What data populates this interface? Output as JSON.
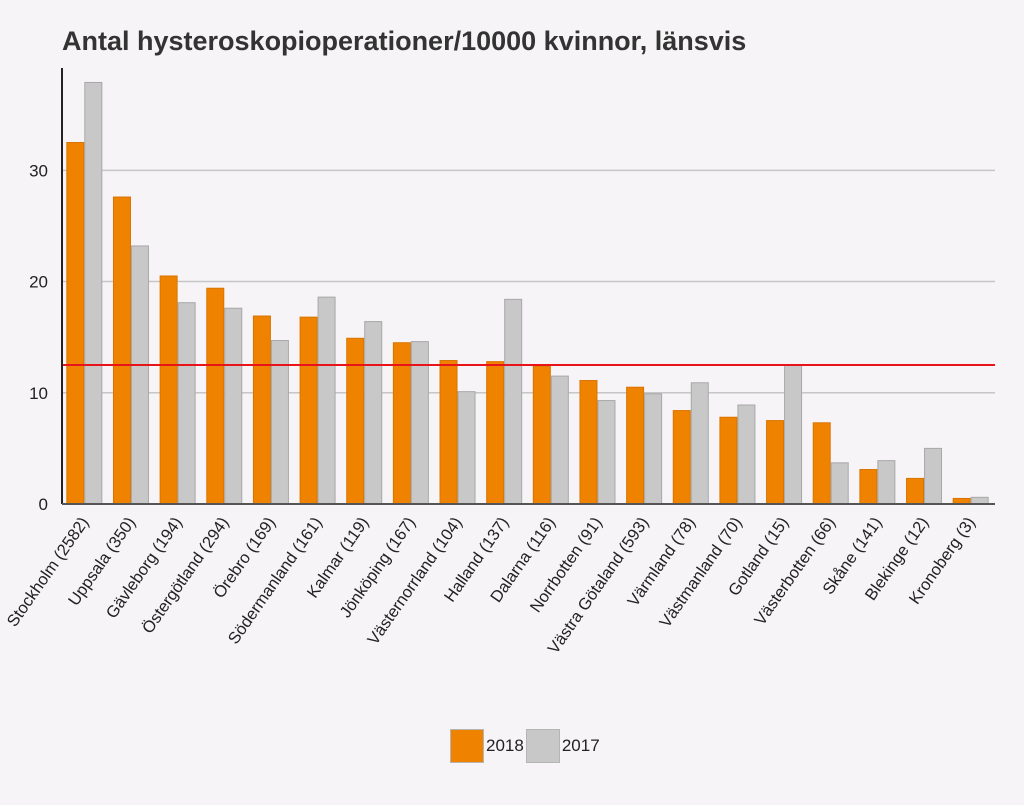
{
  "chart_data": {
    "type": "bar",
    "title": "Antal hysteroskopioperationer/10000 kvinnor, länsvis",
    "xlabel": "",
    "ylabel": "",
    "ylim": [
      0,
      39.2
    ],
    "yticks": [
      0,
      10,
      20,
      30
    ],
    "grid": true,
    "legend_position": "bottom",
    "reference_line": {
      "value": 12.5,
      "color": "#e8141a"
    },
    "categories": [
      "Stockholm (2582)",
      "Uppsala (350)",
      "Gävleborg (194)",
      "Östergötland (294)",
      "Örebro (169)",
      "Södermanland (161)",
      "Kalmar (119)",
      "Jönköping (167)",
      "Västernorrland (104)",
      "Halland (137)",
      "Dalarna (116)",
      "Norrbotten (91)",
      "Västra Götaland (593)",
      "Värmland (78)",
      "Västmanland (70)",
      "Gotland (15)",
      "Västerbotten (66)",
      "Skåne (141)",
      "Blekinge (12)",
      "Kronoberg (3)"
    ],
    "series": [
      {
        "name": "2018",
        "color": "#ef8300",
        "values": [
          32.5,
          27.6,
          20.5,
          19.4,
          16.9,
          16.8,
          14.9,
          14.5,
          12.9,
          12.8,
          12.4,
          11.1,
          10.5,
          8.4,
          7.8,
          7.5,
          7.3,
          3.1,
          2.3,
          0.5
        ]
      },
      {
        "name": "2017",
        "color": "#c8c8c8",
        "values": [
          37.9,
          23.2,
          18.1,
          17.6,
          14.7,
          18.6,
          16.4,
          14.6,
          10.1,
          18.4,
          11.5,
          9.3,
          9.9,
          10.9,
          8.9,
          12.5,
          3.7,
          3.9,
          5.0,
          0.6
        ]
      }
    ]
  }
}
